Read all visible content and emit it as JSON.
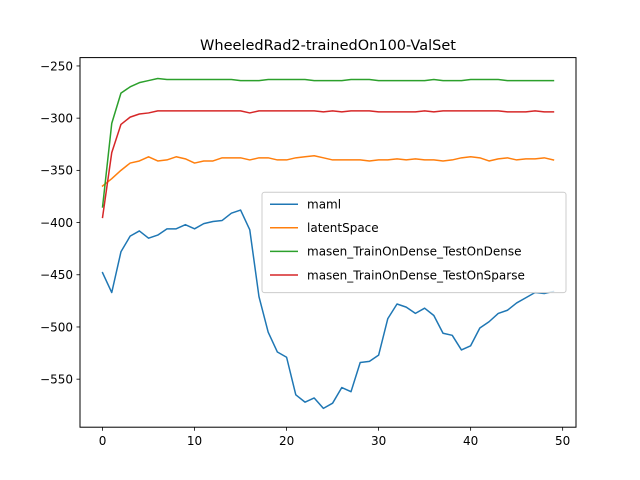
{
  "chart_data": {
    "type": "line",
    "title": "WheeledRad2-trainedOn100-ValSet",
    "xlabel": "",
    "ylabel": "",
    "xlim": [
      -2.45,
      51.45
    ],
    "ylim": [
      -596,
      -242
    ],
    "xticks": [
      0,
      10,
      20,
      30,
      40,
      50
    ],
    "yticks": [
      -550,
      -500,
      -450,
      -400,
      -350,
      -300,
      -250
    ],
    "xtick_labels": [
      "0",
      "10",
      "20",
      "30",
      "40",
      "50"
    ],
    "ytick_labels": [
      "−550",
      "−500",
      "−450",
      "−400",
      "−350",
      "−300",
      "−250"
    ],
    "grid": false,
    "legend_position": "center-right",
    "x": [
      0,
      1,
      2,
      3,
      4,
      5,
      6,
      7,
      8,
      9,
      10,
      11,
      12,
      13,
      14,
      15,
      16,
      17,
      18,
      19,
      20,
      21,
      22,
      23,
      24,
      25,
      26,
      27,
      28,
      29,
      30,
      31,
      32,
      33,
      34,
      35,
      36,
      37,
      38,
      39,
      40,
      41,
      42,
      43,
      44,
      45,
      46,
      47,
      48,
      49
    ],
    "series": [
      {
        "name": "maml",
        "color": "#1f77b4",
        "values": [
          -448,
          -467,
          -428,
          -413,
          -408,
          -415,
          -412,
          -406,
          -406,
          -402,
          -406,
          -401,
          -399,
          -398,
          -391,
          -388,
          -407,
          -471,
          -505,
          -524,
          -529,
          -565,
          -572,
          -568,
          -578,
          -573,
          -558,
          -562,
          -534,
          -533,
          -527,
          -492,
          -478,
          -481,
          -487,
          -482,
          -489,
          -506,
          -508,
          -522,
          -518,
          -501,
          -495,
          -487,
          -484,
          -477,
          -472,
          -467,
          -468,
          -466
        ]
      },
      {
        "name": "latentSpace",
        "color": "#ff7f0e",
        "values": [
          -365,
          -358,
          -350,
          -343,
          -341,
          -337,
          -341,
          -340,
          -337,
          -339,
          -343,
          -341,
          -341,
          -338,
          -338,
          -338,
          -340,
          -338,
          -338,
          -340,
          -340,
          -338,
          -337,
          -336,
          -338,
          -340,
          -340,
          -340,
          -340,
          -341,
          -340,
          -340,
          -339,
          -340,
          -339,
          -340,
          -340,
          -341,
          -340,
          -338,
          -337,
          -338,
          -341,
          -339,
          -338,
          -340,
          -339,
          -339,
          -338,
          -340
        ]
      },
      {
        "name": "masen_TrainOnDense_TestOnDense",
        "color": "#2ca02c",
        "values": [
          -385,
          -305,
          -276,
          -270,
          -266,
          -264,
          -262,
          -263,
          -263,
          -263,
          -263,
          -263,
          -263,
          -263,
          -263,
          -264,
          -264,
          -264,
          -263,
          -263,
          -263,
          -263,
          -263,
          -264,
          -264,
          -264,
          -264,
          -263,
          -263,
          -263,
          -264,
          -264,
          -264,
          -264,
          -264,
          -264,
          -263,
          -264,
          -264,
          -264,
          -263,
          -263,
          -263,
          -263,
          -264,
          -264,
          -264,
          -264,
          -264,
          -264
        ]
      },
      {
        "name": "masen_TrainOnDense_TestOnSparse",
        "color": "#d62728",
        "values": [
          -395,
          -333,
          -306,
          -299,
          -296,
          -295,
          -293,
          -293,
          -293,
          -293,
          -293,
          -293,
          -293,
          -293,
          -293,
          -293,
          -295,
          -293,
          -293,
          -293,
          -293,
          -293,
          -293,
          -293,
          -294,
          -293,
          -294,
          -293,
          -293,
          -293,
          -294,
          -294,
          -294,
          -294,
          -294,
          -293,
          -294,
          -293,
          -293,
          -293,
          -293,
          -293,
          -293,
          -293,
          -294,
          -294,
          -294,
          -293,
          -294,
          -294
        ]
      }
    ]
  }
}
